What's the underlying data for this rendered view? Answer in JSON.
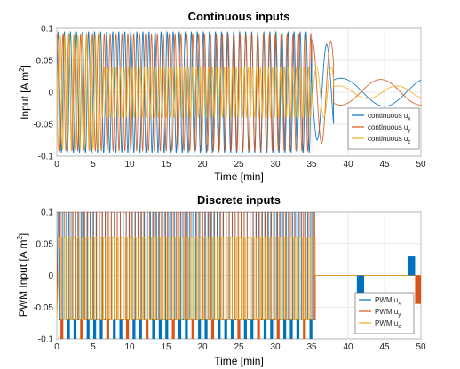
{
  "chart_data": [
    {
      "type": "line",
      "title": "Continuous inputs",
      "xlabel": "Time [min]",
      "ylabel_prefix": "Input [A m",
      "ylabel_sup": "2",
      "ylabel_suffix": "]",
      "xlim": [
        0,
        50
      ],
      "ylim": [
        -0.1,
        0.1
      ],
      "x_ticks": [
        0,
        5,
        10,
        15,
        20,
        25,
        30,
        35,
        40,
        45,
        50
      ],
      "y_ticks": [
        0.1,
        0.05,
        0,
        -0.05,
        -0.1
      ],
      "x_tick_labels": [
        "0",
        "5",
        "10",
        "15",
        "20",
        "25",
        "30",
        "35",
        "40",
        "45",
        "50"
      ],
      "y_tick_labels": [
        "0.1",
        "0.05",
        "0",
        "-0.05",
        "-0.1"
      ],
      "grid": true,
      "legend_position": "bottom-right",
      "series": [
        {
          "name_main": "continuous u",
          "name_sub": "x",
          "color": "#0072BD",
          "segments": [
            {
              "t0": 0,
              "t1": 35,
              "amplitude": 0.095,
              "period_min": 0.83
            },
            {
              "t0": 35,
              "t1": 38,
              "amplitude": 0.075,
              "period_min": 2.6
            },
            {
              "t0": 38,
              "t1": 50,
              "amplitude": 0.022,
              "period_min": 12
            }
          ]
        },
        {
          "name_main": "continuous u",
          "name_sub": "y",
          "color": "#D95319",
          "segments": [
            {
              "t0": 0,
              "t1": 35,
              "amplitude": 0.092,
              "period_min": 0.81
            },
            {
              "t0": 35,
              "t1": 38,
              "amplitude": 0.08,
              "period_min": 2.5
            },
            {
              "t0": 38,
              "t1": 50,
              "amplitude": 0.02,
              "period_min": 11
            }
          ]
        },
        {
          "name_main": "continuous u",
          "name_sub": "z",
          "color": "#EDB120",
          "segments": [
            {
              "t0": 0,
              "t1": 6,
              "amplitude": 0.09,
              "period_min": 0.6
            },
            {
              "t0": 6,
              "t1": 35,
              "amplitude": 0.04,
              "period_min": 0.55
            },
            {
              "t0": 35,
              "t1": 38,
              "amplitude": 0.04,
              "period_min": 2.0
            },
            {
              "t0": 38,
              "t1": 50,
              "amplitude": 0.01,
              "period_min": 8
            }
          ]
        }
      ]
    },
    {
      "type": "line",
      "title": "Discrete inputs",
      "xlabel": "Time [min]",
      "ylabel_prefix": "PWM Input [A m",
      "ylabel_sup": "2",
      "ylabel_suffix": "]",
      "xlim": [
        0,
        50
      ],
      "ylim": [
        -0.1,
        0.1
      ],
      "x_ticks": [
        0,
        5,
        10,
        15,
        20,
        25,
        30,
        35,
        40,
        45,
        50
      ],
      "y_ticks": [
        0.1,
        0.05,
        0,
        -0.05,
        -0.1
      ],
      "x_tick_labels": [
        "0",
        "5",
        "10",
        "15",
        "20",
        "25",
        "30",
        "35",
        "40",
        "45",
        "50"
      ],
      "y_tick_labels": [
        "0.1",
        "0.05",
        "0",
        "-0.05",
        "-0.1"
      ],
      "grid": true,
      "legend_position": "bottom-right",
      "series": [
        {
          "name_main": "PWM u",
          "name_sub": "x",
          "color": "#0072BD",
          "level_high": 0.1,
          "level_low": -0.07,
          "switch_period_min": 0.83,
          "end_min": 35.5
        },
        {
          "name_main": "PWM u",
          "name_sub": "y",
          "color": "#D95319",
          "level_high": 0.1,
          "level_low": -0.07,
          "switch_period_min": 0.81,
          "end_min": 35.5
        },
        {
          "name_main": "PWM u",
          "name_sub": "z",
          "color": "#EDB120",
          "level_high": 0.06,
          "level_low": -0.07,
          "switch_period_min": 0.6,
          "end_min": 35.5
        }
      ],
      "blocks": [
        {
          "series": "x",
          "t0": 41.2,
          "t1": 42.2,
          "y0": -0.035,
          "y1": 0
        },
        {
          "series": "x",
          "t0": 48.2,
          "t1": 49.2,
          "y0": 0,
          "y1": 0.03
        },
        {
          "series": "y",
          "t0": 49.2,
          "t1": 50,
          "y0": -0.045,
          "y1": 0
        }
      ]
    }
  ]
}
